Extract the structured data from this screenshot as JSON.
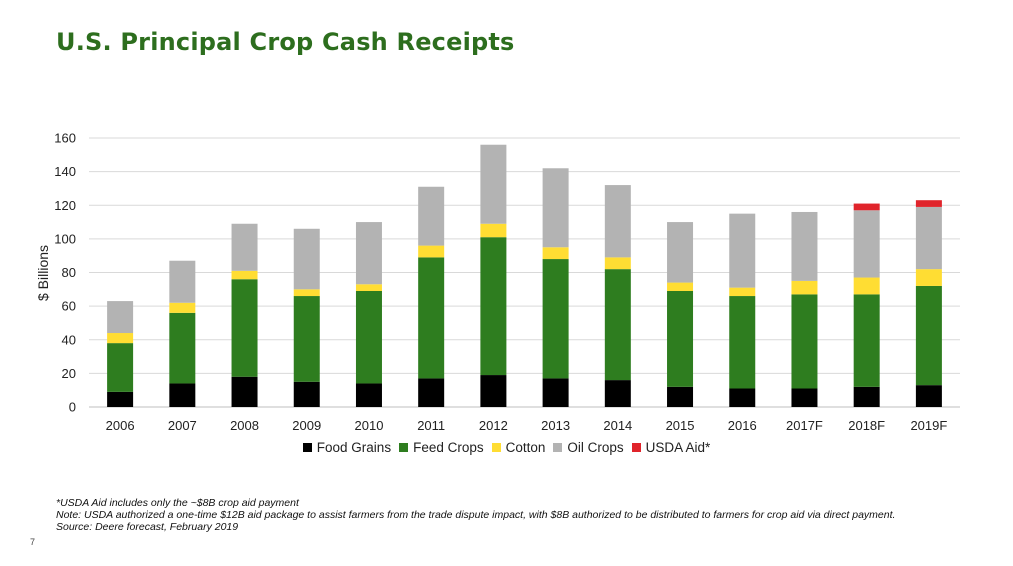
{
  "slide": {
    "title": "U.S. Principal Crop Cash Receipts",
    "page_number": "7",
    "notes": [
      "*USDA Aid includes only the ~$8B crop aid payment",
      "Note: USDA authorized a one-time $12B aid package to assist farmers from the trade dispute impact, with $8B authorized to be distributed to farmers for crop aid via direct payment.",
      "Source: Deere forecast, February 2019"
    ]
  },
  "chart_data": {
    "type": "bar",
    "stacked": true,
    "title": "U.S. Principal Crop Cash Receipts",
    "xlabel": "",
    "ylabel": "$ Billions",
    "ylim": [
      0,
      160
    ],
    "yticks": [
      0,
      20,
      40,
      60,
      80,
      100,
      120,
      140,
      160
    ],
    "grid": true,
    "legend_position": "bottom",
    "categories": [
      "2006",
      "2007",
      "2008",
      "2009",
      "2010",
      "2011",
      "2012",
      "2013",
      "2014",
      "2015",
      "2016",
      "2017F",
      "2018F",
      "2019F"
    ],
    "series": [
      {
        "name": "Food Grains",
        "color": "#000000",
        "values": [
          9,
          14,
          18,
          15,
          14,
          17,
          19,
          17,
          16,
          12,
          11,
          11,
          12,
          13
        ]
      },
      {
        "name": "Feed Crops",
        "color": "#2e7d1f",
        "values": [
          29,
          42,
          58,
          51,
          55,
          72,
          82,
          71,
          66,
          57,
          55,
          56,
          55,
          59
        ]
      },
      {
        "name": "Cotton",
        "color": "#ffdd33",
        "values": [
          6,
          6,
          5,
          4,
          4,
          7,
          8,
          7,
          7,
          5,
          5,
          8,
          10,
          10
        ]
      },
      {
        "name": "Oil Crops",
        "color": "#b3b3b3",
        "values": [
          19,
          25,
          28,
          36,
          37,
          35,
          47,
          47,
          43,
          36,
          44,
          41,
          40,
          37
        ]
      },
      {
        "name": "USDA Aid*",
        "color": "#e0242b",
        "values": [
          0,
          0,
          0,
          0,
          0,
          0,
          0,
          0,
          0,
          0,
          0,
          0,
          4,
          4
        ]
      }
    ]
  }
}
